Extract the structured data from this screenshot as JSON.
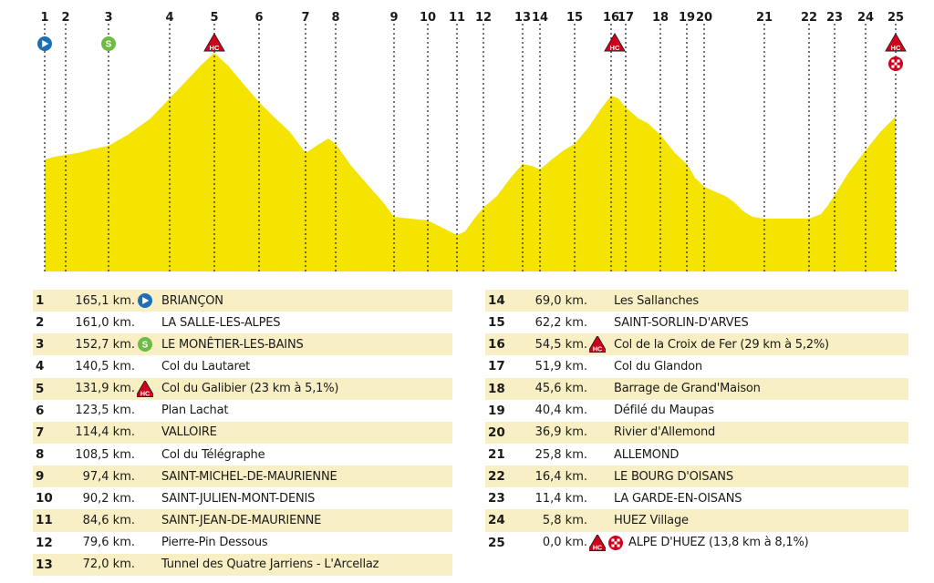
{
  "colors": {
    "profile_fill": "#f5e400",
    "row_shade": "#f8efc4",
    "start_icon": "#1b6fb5",
    "sprint_icon": "#6dbb45",
    "hc_icon": "#d0021b",
    "finish_icon": "#d0021b"
  },
  "checkpoints": [
    {
      "num": "1",
      "km": "165,1 km.",
      "place": "BRIANÇON",
      "icons": [
        "start-icon"
      ]
    },
    {
      "num": "2",
      "km": "161,0 km.",
      "place": "LA SALLE-LES-ALPES",
      "icons": []
    },
    {
      "num": "3",
      "km": "152,7 km.",
      "place": "LE MONÊTIER-LES-BAINS",
      "icons": [
        "sprint-icon"
      ]
    },
    {
      "num": "4",
      "km": "140,5 km.",
      "place": "Col du Lautaret",
      "icons": []
    },
    {
      "num": "5",
      "km": "131,9 km.",
      "place": "Col du Galibier (23 km à 5,1%)",
      "icons": [
        "hc-climb-icon"
      ]
    },
    {
      "num": "6",
      "km": "123,5 km.",
      "place": "Plan Lachat",
      "icons": []
    },
    {
      "num": "7",
      "km": "114,4 km.",
      "place": "VALLOIRE",
      "icons": []
    },
    {
      "num": "8",
      "km": "108,5 km.",
      "place": "Col du Télégraphe",
      "icons": []
    },
    {
      "num": "9",
      "km": "97,4 km.",
      "place": "SAINT-MICHEL-DE-MAURIENNE",
      "icons": []
    },
    {
      "num": "10",
      "km": "90,2 km.",
      "place": "SAINT-JULIEN-MONT-DENIS",
      "icons": []
    },
    {
      "num": "11",
      "km": "84,6 km.",
      "place": "SAINT-JEAN-DE-MAURIENNE",
      "icons": []
    },
    {
      "num": "12",
      "km": "79,6 km.",
      "place": "Pierre-Pin Dessous",
      "icons": []
    },
    {
      "num": "13",
      "km": "72,0 km.",
      "place": "Tunnel des Quatre Jarriens - L'Arcellaz",
      "icons": []
    },
    {
      "num": "14",
      "km": "69,0 km.",
      "place": "Les Sallanches",
      "icons": []
    },
    {
      "num": "15",
      "km": "62,2 km.",
      "place": "SAINT-SORLIN-D'ARVES",
      "icons": []
    },
    {
      "num": "16",
      "km": "54,5 km.",
      "place": "Col de la Croix de Fer (29 km à 5,2%)",
      "icons": [
        "hc-climb-icon"
      ]
    },
    {
      "num": "17",
      "km": "51,9 km.",
      "place": "Col du Glandon",
      "icons": []
    },
    {
      "num": "18",
      "km": "45,6 km.",
      "place": "Barrage de Grand'Maison",
      "icons": []
    },
    {
      "num": "19",
      "km": "40,4 km.",
      "place": "Défilé du Maupas",
      "icons": []
    },
    {
      "num": "20",
      "km": "36,9 km.",
      "place": "Rivier d'Allemond",
      "icons": []
    },
    {
      "num": "21",
      "km": "25,8 km.",
      "place": "ALLEMOND",
      "icons": []
    },
    {
      "num": "22",
      "km": "16,4 km.",
      "place": "LE BOURG D'OISANS",
      "icons": []
    },
    {
      "num": "23",
      "km": "11,4 km.",
      "place": "LA GARDE-EN-OISANS",
      "icons": []
    },
    {
      "num": "24",
      "km": "5,8 km.",
      "place": "HUEZ Village",
      "icons": []
    },
    {
      "num": "25",
      "km": "0,0 km.",
      "place": "ALPE D'HUEZ (13,8 km à 8,1%)",
      "icons": [
        "hc-climb-icon",
        "finish-icon"
      ]
    }
  ],
  "icon_labels": {
    "sprint": "S",
    "hc": "HC"
  }
}
